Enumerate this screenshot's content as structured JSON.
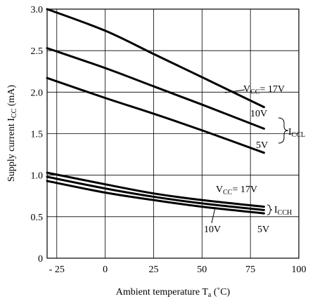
{
  "chart_data": {
    "type": "line",
    "xlabel_main": "Ambient temperature T",
    "xlabel_sub": "a",
    "xlabel_unit": " (˚C)",
    "ylabel_main": "Supply current I",
    "ylabel_sub": "CC",
    "ylabel_unit": " (mA)",
    "xlim": [
      -30,
      100
    ],
    "ylim": [
      0,
      3.0
    ],
    "x_ticks": [
      -25,
      0,
      25,
      50,
      75,
      100
    ],
    "x_tick_labels": [
      "- 25",
      "0",
      "25",
      "50",
      "75",
      "100"
    ],
    "y_ticks": [
      0,
      0.5,
      1.0,
      1.5,
      2.0,
      2.5,
      3.0
    ],
    "y_tick_labels": [
      "0",
      "0.5",
      "1.0",
      "1.5",
      "2.0",
      "2.5",
      "3.0"
    ],
    "grid": true,
    "series": [
      {
        "x": [
          -30,
          0,
          25,
          50,
          82
        ],
        "values": [
          3.0,
          2.74,
          2.46,
          2.18,
          1.82
        ]
      },
      {
        "x": [
          -30,
          0,
          25,
          50,
          82
        ],
        "values": [
          2.53,
          2.29,
          2.07,
          1.85,
          1.56
        ]
      },
      {
        "x": [
          -30,
          0,
          25,
          50,
          82
        ],
        "values": [
          2.17,
          1.93,
          1.74,
          1.54,
          1.27
        ]
      },
      {
        "x": [
          -30,
          0,
          25,
          50,
          82
        ],
        "values": [
          1.03,
          0.89,
          0.78,
          0.7,
          0.62
        ]
      },
      {
        "x": [
          -30,
          0,
          25,
          50,
          82
        ],
        "values": [
          0.98,
          0.84,
          0.74,
          0.66,
          0.58
        ]
      },
      {
        "x": [
          -30,
          0,
          25,
          50,
          82
        ],
        "values": [
          0.93,
          0.79,
          0.7,
          0.62,
          0.54
        ]
      }
    ],
    "annotations": {
      "vcc_high_main": "V",
      "vcc_high_sub": "CC",
      "vcc_high_val": "= 17V",
      "v10_high": "10V",
      "v5_high": "5V",
      "iccl_main": "I",
      "iccl_sub": "CCL",
      "vcc_low_main": "V",
      "vcc_low_sub": "CC",
      "vcc_low_val": "= 17V",
      "icch_main": "I",
      "icch_sub": "CCH",
      "v10_low": "10V",
      "v5_low": "5V"
    }
  }
}
